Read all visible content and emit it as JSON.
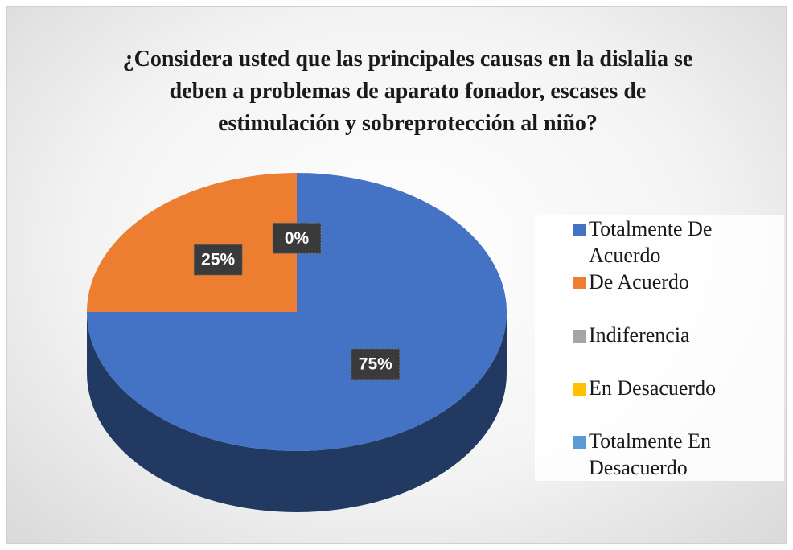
{
  "chart_data": {
    "type": "pie",
    "title": "¿Considera usted que las principales causas en la dislalia se deben a problemas de aparato fonador, escases de estimulación y sobreprotección al niño?",
    "categories": [
      "Totalmente De Acuerdo",
      "De Acuerdo",
      "Indiferencia",
      "En Desacuerdo",
      "Totalmente En Desacuerdo"
    ],
    "values": [
      75,
      25,
      0,
      0,
      0
    ],
    "value_labels": [
      "75%",
      "25%",
      "0%",
      null,
      null
    ],
    "colors": [
      "#4472c4",
      "#ed7d31",
      "#a5a5a5",
      "#ffc000",
      "#5b9bd5"
    ],
    "legend": "right"
  }
}
